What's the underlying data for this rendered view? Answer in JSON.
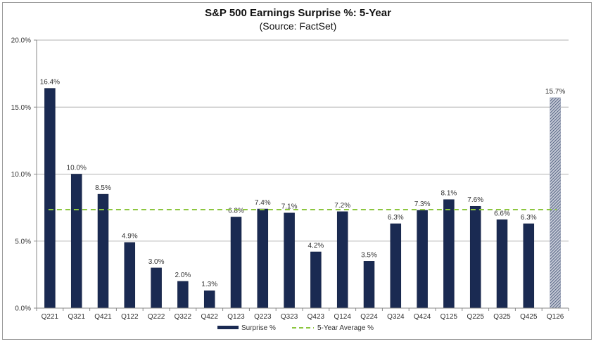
{
  "chart_data": {
    "type": "bar",
    "title": "S&P 500 Earnings Surprise %: 5-Year",
    "subtitle": "(Source: FactSet)",
    "xlabel": "",
    "ylabel": "",
    "ylim": [
      0,
      20
    ],
    "yticks": [
      0,
      5,
      10,
      15,
      20
    ],
    "ytick_labels": [
      "0.0%",
      "5.0%",
      "10.0%",
      "15.0%",
      "20.0%"
    ],
    "grid": true,
    "categories": [
      "Q221",
      "Q321",
      "Q421",
      "Q122",
      "Q222",
      "Q322",
      "Q422",
      "Q123",
      "Q223",
      "Q323",
      "Q423",
      "Q124",
      "Q224",
      "Q324",
      "Q424",
      "Q125",
      "Q225",
      "Q325",
      "Q425",
      "Q126"
    ],
    "series": [
      {
        "name": "Surprise %",
        "color": "#1a2a52",
        "values": [
          16.4,
          10.0,
          8.5,
          4.9,
          3.0,
          2.0,
          1.3,
          6.8,
          7.4,
          7.1,
          4.2,
          7.2,
          3.5,
          6.3,
          7.3,
          8.1,
          7.6,
          6.6,
          6.3,
          15.7
        ],
        "labels": [
          "16.4%",
          "10.0%",
          "8.5%",
          "4.9%",
          "3.0%",
          "2.0%",
          "1.3%",
          "6.8%",
          "7.4%",
          "7.1%",
          "4.2%",
          "7.2%",
          "3.5%",
          "6.3%",
          "7.3%",
          "8.1%",
          "7.6%",
          "6.6%",
          "6.3%",
          "15.7%"
        ],
        "hatched": [
          false,
          false,
          false,
          false,
          false,
          false,
          false,
          false,
          false,
          false,
          false,
          false,
          false,
          false,
          false,
          false,
          false,
          false,
          false,
          true
        ]
      },
      {
        "name": "5-Year Average %",
        "type": "line",
        "style": "dashed",
        "color": "#8cc63f",
        "value": 7.35
      }
    ],
    "legend": {
      "position": "bottom",
      "entries": [
        "Surprise %",
        "5-Year Average %"
      ]
    }
  }
}
